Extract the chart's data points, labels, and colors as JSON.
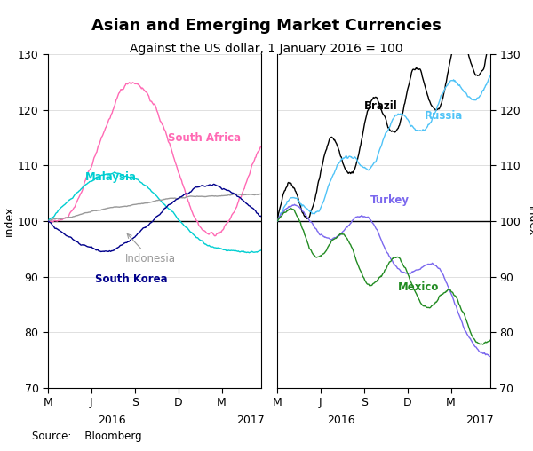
{
  "title": "Asian and Emerging Market Currencies",
  "subtitle": "Against the US dollar, 1 January 2016 = 100",
  "ylabel": "index",
  "source": "Source:    Bloomberg",
  "ylim": [
    70,
    130
  ],
  "yticks": [
    70,
    80,
    90,
    100,
    110,
    120,
    130
  ],
  "left_xtick_labels": [
    "M",
    "J",
    "S",
    "D",
    "M"
  ],
  "right_xtick_labels": [
    "M",
    "J",
    "S",
    "D",
    "M"
  ],
  "left_year_label": "2016",
  "right_year_label": "2016",
  "left_year2_label": "2017",
  "right_year2_label": "2017",
  "colors": {
    "south_africa": "#FF69B4",
    "malaysia": "#00CED1",
    "indonesia": "#999999",
    "south_korea": "#00008B",
    "brazil": "#000000",
    "russia": "#4FC3F7",
    "turkey": "#7B68EE",
    "mexico": "#228B22"
  },
  "hline_y": 100
}
